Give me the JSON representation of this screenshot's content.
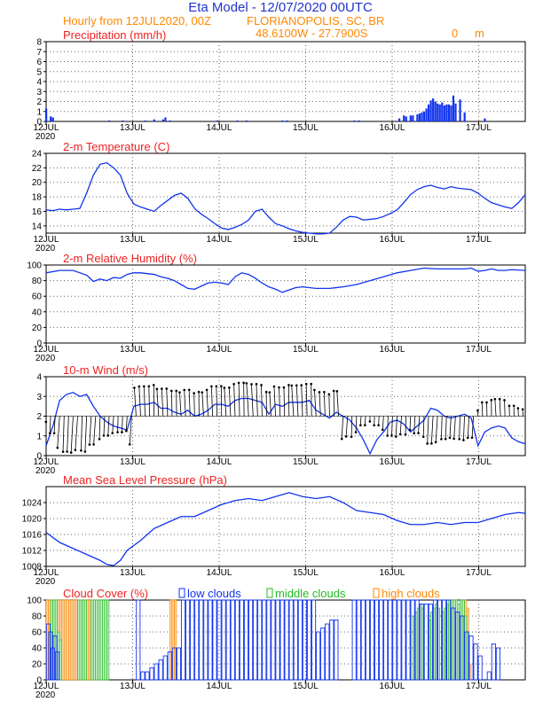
{
  "header": {
    "title": "Eta Model - 12/07/2020 00UTC",
    "subtitle_left": "Hourly from 12JUL2020, 00Z",
    "location": "FLORIANOPOLIS, SC, BR",
    "coords": "48.6100W - 27.7900S",
    "elevation": "0",
    "elevation_unit": "m"
  },
  "colors": {
    "title": "#2233cc",
    "orange": "#ff8800",
    "red": "#ee2222",
    "series": "#1133ee",
    "green": "#22bb22"
  },
  "days": [
    "12JUL",
    "13JUL",
    "14JUL",
    "15JUL",
    "16JUL",
    "17JUL"
  ],
  "year": "2020",
  "chart_data": [
    {
      "id": "precip",
      "type": "bar",
      "title": "Precipitation (mm/h)",
      "ylim": [
        0,
        8
      ],
      "yticks": [
        0,
        1,
        2,
        3,
        4,
        5,
        6,
        7,
        8
      ],
      "x_hours": [
        0,
        2,
        3,
        28,
        34,
        44,
        48,
        52,
        53,
        55,
        76,
        85,
        89,
        105,
        107,
        137,
        139,
        157,
        159,
        160,
        162,
        163,
        165,
        166,
        167,
        168,
        169,
        170,
        171,
        172,
        173,
        174,
        175,
        176,
        177,
        178,
        179,
        180,
        181,
        182,
        184,
        186,
        195
      ],
      "values": [
        1.3,
        0.5,
        0.4,
        0.1,
        0.1,
        0.1,
        0.2,
        0.2,
        0.4,
        0.1,
        0.1,
        0.1,
        0.1,
        0.1,
        0.1,
        0.1,
        0.1,
        0.3,
        0.6,
        0.5,
        0.6,
        0.6,
        0.7,
        0.8,
        0.9,
        1.0,
        1.3,
        1.7,
        2.1,
        2.3,
        2.0,
        1.8,
        1.7,
        1.9,
        1.6,
        1.7,
        1.7,
        1.6,
        2.6,
        1.8,
        2.2,
        0.9,
        0.3
      ]
    },
    {
      "id": "temp",
      "type": "line",
      "title": "2-m Temperature (C)",
      "ylim": [
        13,
        24
      ],
      "yticks": [
        14,
        16,
        18,
        20,
        22,
        24
      ],
      "x": [
        0,
        3,
        6,
        9,
        12,
        15,
        18,
        21,
        24,
        27,
        30,
        33,
        36,
        39,
        42,
        45,
        48,
        51,
        54,
        57,
        60,
        63,
        66,
        69,
        72,
        75,
        78,
        81,
        84,
        87,
        90,
        93,
        96,
        99,
        102,
        105,
        108,
        111,
        114,
        117,
        120,
        123,
        126,
        129,
        132,
        135,
        138,
        141,
        144,
        147,
        150,
        153,
        156,
        159,
        162,
        165,
        168,
        171,
        174,
        177,
        180,
        183,
        186,
        189,
        192,
        195,
        198,
        201,
        204,
        207,
        210,
        213
      ],
      "values": [
        16.2,
        16.1,
        16.3,
        16.2,
        16.3,
        16.4,
        18.5,
        21.0,
        22.5,
        22.7,
        22.0,
        21.0,
        18.5,
        17.0,
        16.6,
        16.3,
        16.0,
        16.8,
        17.5,
        18.2,
        18.5,
        17.8,
        16.4,
        15.6,
        15.0,
        14.3,
        13.7,
        13.5,
        13.8,
        14.2,
        14.8,
        16.0,
        16.3,
        15.2,
        14.3,
        14.0,
        13.6,
        13.3,
        13.1,
        13.0,
        12.9,
        12.9,
        13.0,
        13.8,
        14.8,
        15.3,
        15.2,
        14.8,
        14.9,
        15.0,
        15.3,
        15.7,
        16.2,
        17.2,
        18.3,
        19.0,
        19.4,
        19.6,
        19.3,
        19.1,
        19.4,
        19.2,
        19.1,
        19.0,
        18.5,
        17.8,
        17.2,
        16.9,
        16.6,
        16.4,
        17.2,
        18.3
      ]
    },
    {
      "id": "rh",
      "type": "line",
      "title": "2-m Relative Humidity (%)",
      "ylim": [
        0,
        100
      ],
      "yticks": [
        0,
        20,
        40,
        60,
        80,
        100
      ],
      "x": [
        0,
        6,
        12,
        18,
        21,
        24,
        27,
        30,
        33,
        36,
        39,
        42,
        45,
        48,
        51,
        54,
        57,
        60,
        63,
        66,
        69,
        72,
        75,
        78,
        81,
        84,
        87,
        90,
        93,
        96,
        99,
        102,
        105,
        108,
        111,
        114,
        117,
        120,
        126,
        132,
        138,
        144,
        150,
        156,
        162,
        168,
        174,
        180,
        186,
        189,
        192,
        195,
        198,
        201,
        204,
        207,
        213
      ],
      "values": [
        90,
        93,
        93,
        87,
        79,
        82,
        80,
        84,
        83,
        88,
        90,
        90,
        89,
        88,
        85,
        83,
        80,
        75,
        70,
        69,
        73,
        77,
        78,
        77,
        75,
        85,
        90,
        88,
        83,
        77,
        72,
        69,
        65,
        68,
        71,
        72,
        71,
        70,
        70,
        72,
        75,
        80,
        85,
        90,
        93,
        96,
        95,
        95,
        95,
        96,
        92,
        93,
        95,
        93,
        93,
        94,
        93
      ]
    },
    {
      "id": "wind",
      "type": "line+barbs",
      "title": "10-m Wind (m/s)",
      "ylim": [
        0,
        4
      ],
      "yticks": [
        0,
        1,
        2,
        3,
        4
      ],
      "x": [
        0,
        3,
        6,
        9,
        12,
        15,
        18,
        21,
        24,
        27,
        30,
        33,
        36,
        39,
        42,
        45,
        48,
        51,
        54,
        57,
        60,
        63,
        66,
        69,
        72,
        75,
        78,
        81,
        84,
        87,
        90,
        93,
        96,
        99,
        102,
        105,
        108,
        111,
        114,
        117,
        120,
        123,
        126,
        129,
        132,
        135,
        138,
        141,
        144,
        147,
        150,
        153,
        156,
        159,
        162,
        165,
        168,
        171,
        174,
        177,
        180,
        183,
        186,
        189,
        192,
        195,
        198,
        201,
        204,
        207,
        210,
        213
      ],
      "values": [
        0.5,
        1.5,
        2.8,
        3.1,
        3.2,
        3.0,
        3.1,
        2.5,
        2.0,
        1.7,
        1.5,
        1.4,
        1.3,
        2.5,
        2.6,
        2.6,
        2.7,
        2.4,
        2.4,
        2.2,
        2.1,
        2.3,
        2.0,
        2.1,
        2.3,
        2.6,
        2.6,
        2.5,
        2.8,
        2.9,
        2.9,
        2.8,
        2.7,
        2.1,
        2.6,
        2.5,
        2.7,
        2.7,
        2.7,
        2.8,
        2.3,
        2.1,
        1.9,
        2.2,
        2.0,
        1.8,
        1.4,
        0.8,
        0.1,
        0.8,
        1.2,
        1.7,
        1.8,
        1.6,
        1.2,
        1.5,
        1.8,
        2.4,
        2.3,
        2.0,
        1.9,
        2.0,
        2.1,
        1.9,
        0.5,
        1.2,
        1.4,
        1.5,
        1.4,
        0.9,
        0.7,
        0.6
      ]
    },
    {
      "id": "mslp",
      "type": "line",
      "title": "Mean Sea Level Pressure (hPa)",
      "ylim": [
        1008,
        1028
      ],
      "yticks": [
        1008,
        1012,
        1016,
        1020,
        1024
      ],
      "x": [
        0,
        6,
        12,
        18,
        24,
        27,
        30,
        33,
        36,
        42,
        48,
        54,
        60,
        66,
        72,
        78,
        84,
        90,
        96,
        102,
        108,
        114,
        120,
        126,
        132,
        138,
        144,
        150,
        156,
        162,
        168,
        174,
        180,
        186,
        192,
        198,
        204,
        210,
        213
      ],
      "values": [
        1016.5,
        1014,
        1012.5,
        1011,
        1009.5,
        1008.5,
        1008.2,
        1009.5,
        1012,
        1014.5,
        1017.5,
        1019,
        1020.5,
        1020.5,
        1022,
        1023.5,
        1024.5,
        1025,
        1024.5,
        1025.5,
        1026.5,
        1025.5,
        1025,
        1025.5,
        1024,
        1022,
        1021.5,
        1021,
        1019.5,
        1018.5,
        1018.5,
        1019,
        1018.5,
        1019,
        1019,
        1020,
        1021,
        1021.5,
        1021.3
      ]
    },
    {
      "id": "cloud",
      "type": "bar",
      "title": "Cloud Cover (%)",
      "ylim": [
        0,
        100
      ],
      "yticks": [
        0,
        20,
        40,
        60,
        80,
        100
      ],
      "legend": [
        "low clouds",
        "middle clouds",
        "high clouds"
      ],
      "low_x": [
        0,
        1,
        2,
        3,
        4,
        6,
        8,
        10,
        12,
        14,
        16,
        20,
        24,
        26,
        28,
        30,
        32,
        34,
        36,
        38,
        40,
        42,
        44,
        46,
        48,
        50,
        52,
        54,
        56,
        58,
        60,
        62,
        64,
        66,
        68,
        70,
        72,
        74,
        76,
        78,
        80,
        82,
        84,
        86,
        88,
        90,
        92,
        94,
        96,
        98,
        100,
        102,
        104,
        106,
        108,
        110,
        112,
        114,
        116,
        118,
        120,
        122,
        124,
        126,
        128,
        130,
        132,
        134,
        136,
        138,
        140,
        142,
        144,
        146,
        148,
        150,
        152,
        154,
        156,
        158,
        160,
        162,
        164,
        166,
        168,
        170,
        172,
        174,
        176,
        178,
        180,
        182,
        184,
        186,
        188,
        190,
        192,
        194,
        196,
        198,
        200,
        202,
        204,
        206,
        208,
        210
      ],
      "low": [
        70,
        60,
        40,
        55,
        35,
        0,
        0,
        0,
        0,
        0,
        0,
        0,
        0,
        0,
        0,
        0,
        0,
        0,
        0,
        0,
        100,
        10,
        10,
        15,
        20,
        25,
        30,
        35,
        40,
        40,
        100,
        100,
        100,
        100,
        100,
        100,
        100,
        100,
        100,
        100,
        100,
        100,
        100,
        100,
        100,
        100,
        100,
        100,
        100,
        100,
        100,
        100,
        100,
        100,
        100,
        100,
        100,
        100,
        100,
        100,
        60,
        65,
        70,
        75,
        75,
        0,
        0,
        0,
        100,
        100,
        100,
        100,
        100,
        100,
        100,
        100,
        100,
        100,
        100,
        100,
        100,
        100,
        100,
        95,
        95,
        95,
        100,
        100,
        100,
        100,
        90,
        85,
        80,
        60,
        55,
        45,
        30,
        0,
        10,
        45,
        40,
        0,
        0,
        0,
        0,
        0
      ],
      "mid_x": [
        2,
        3,
        4,
        5,
        6,
        14,
        15,
        16,
        17,
        20,
        21,
        22,
        23,
        24,
        25,
        26,
        27,
        163,
        164,
        165,
        166,
        167,
        170,
        171,
        172,
        173,
        174,
        176,
        177,
        178,
        179,
        180,
        181,
        182,
        183,
        184,
        185,
        186,
        187
      ],
      "mid": [
        100,
        100,
        100,
        60,
        50,
        100,
        100,
        100,
        100,
        100,
        100,
        100,
        100,
        100,
        100,
        100,
        100,
        80,
        85,
        90,
        95,
        90,
        75,
        85,
        90,
        95,
        90,
        85,
        90,
        95,
        100,
        100,
        100,
        100,
        95,
        100,
        100,
        80,
        60
      ],
      "high_x": [
        0,
        1,
        2,
        3,
        4,
        5,
        6,
        7,
        8,
        9,
        10,
        11,
        12,
        13,
        14,
        15,
        16,
        17,
        18,
        19,
        20,
        21,
        22,
        23,
        24,
        55,
        56,
        57,
        186,
        187,
        188
      ],
      "high": [
        100,
        100,
        100,
        100,
        100,
        100,
        100,
        100,
        100,
        100,
        100,
        100,
        100,
        100,
        100,
        100,
        100,
        100,
        100,
        100,
        100,
        100,
        100,
        100,
        100,
        100,
        100,
        100,
        100,
        90,
        20
      ]
    }
  ]
}
